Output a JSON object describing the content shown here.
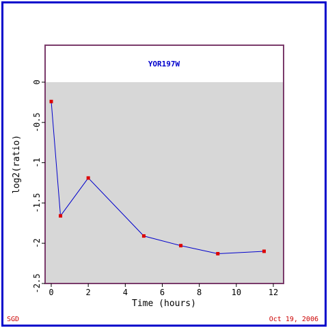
{
  "footer": {
    "left": "SGD",
    "right": "Oct 19, 2006"
  },
  "colors": {
    "frame": "#0000cc",
    "plot_border": "#7a3a6a",
    "plot_fill": "#d7d7d7",
    "line": "#0000cc",
    "marker": "#dd0000",
    "title": "#0000cc",
    "footer_text": "#cc0000"
  },
  "chart_data": {
    "type": "line",
    "title": "YOR197W",
    "xlabel": "Time (hours)",
    "ylabel": "log2(ratio)",
    "xlim": [
      -0.4,
      12.6
    ],
    "ylim": [
      -2.5,
      0.45
    ],
    "xticks": [
      "0",
      "2",
      "4",
      "6",
      "8",
      "10",
      "12"
    ],
    "yticks": [
      "0",
      "-0.5",
      "-1",
      "-1.5",
      "-2",
      "-2.5"
    ],
    "shaded_region": [
      -2.5,
      0
    ],
    "grid": false,
    "series": [
      {
        "x": [
          0,
          0.5,
          2,
          5,
          7,
          9,
          11.5
        ],
        "y": [
          -0.24,
          -1.66,
          -1.19,
          -1.91,
          -2.03,
          -2.13,
          -2.1
        ]
      }
    ]
  }
}
